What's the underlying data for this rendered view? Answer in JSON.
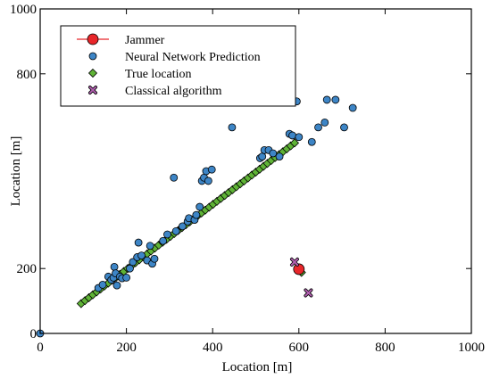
{
  "chart_data": {
    "type": "scatter",
    "title": "",
    "xlabel": "Location [m]",
    "ylabel": "Location [m]",
    "xlim": [
      0,
      1000
    ],
    "ylim": [
      0,
      1000
    ],
    "x_ticks": [
      0,
      200,
      400,
      600,
      800,
      1000
    ],
    "y_ticks": [
      0,
      200,
      800,
      1000
    ],
    "grid": false,
    "legend_placement": "top-left",
    "series": [
      {
        "name": "Jammer",
        "marker": "circle-line",
        "color": "#e8262a",
        "points": [
          [
            600,
            198
          ]
        ]
      },
      {
        "name": "Neural Network Prediction",
        "marker": "circle",
        "color": "#3d85c6",
        "points": [
          [
            0,
            0
          ],
          [
            135,
            140
          ],
          [
            145,
            150
          ],
          [
            158,
            175
          ],
          [
            165,
            165
          ],
          [
            170,
            172
          ],
          [
            172,
            205
          ],
          [
            175,
            185
          ],
          [
            178,
            148
          ],
          [
            185,
            175
          ],
          [
            190,
            170
          ],
          [
            200,
            172
          ],
          [
            208,
            200
          ],
          [
            215,
            220
          ],
          [
            225,
            235
          ],
          [
            228,
            280
          ],
          [
            235,
            240
          ],
          [
            248,
            225
          ],
          [
            255,
            270
          ],
          [
            260,
            215
          ],
          [
            265,
            230
          ],
          [
            285,
            285
          ],
          [
            295,
            305
          ],
          [
            310,
            480
          ],
          [
            315,
            315
          ],
          [
            330,
            330
          ],
          [
            342,
            345
          ],
          [
            345,
            355
          ],
          [
            358,
            350
          ],
          [
            362,
            365
          ],
          [
            370,
            390
          ],
          [
            375,
            470
          ],
          [
            380,
            480
          ],
          [
            385,
            500
          ],
          [
            390,
            470
          ],
          [
            398,
            505
          ],
          [
            445,
            635
          ],
          [
            510,
            540
          ],
          [
            515,
            545
          ],
          [
            520,
            565
          ],
          [
            530,
            565
          ],
          [
            540,
            555
          ],
          [
            555,
            545
          ],
          [
            578,
            615
          ],
          [
            585,
            610
          ],
          [
            595,
            715
          ],
          [
            600,
            605
          ],
          [
            630,
            590
          ],
          [
            645,
            635
          ],
          [
            660,
            650
          ],
          [
            665,
            720
          ],
          [
            685,
            720
          ],
          [
            705,
            635
          ],
          [
            725,
            695
          ]
        ]
      },
      {
        "name": "True location",
        "marker": "diamond",
        "color": "#5fb336",
        "points": [
          [
            95,
            92
          ],
          [
            104,
            101
          ],
          [
            113,
            110
          ],
          [
            122,
            119
          ],
          [
            131,
            128
          ],
          [
            140,
            137
          ],
          [
            149,
            146
          ],
          [
            158,
            155
          ],
          [
            167,
            164
          ],
          [
            176,
            173
          ],
          [
            185,
            182
          ],
          [
            194,
            191
          ],
          [
            203,
            200
          ],
          [
            212,
            209
          ],
          [
            221,
            218
          ],
          [
            230,
            227
          ],
          [
            239,
            236
          ],
          [
            248,
            245
          ],
          [
            257,
            254
          ],
          [
            266,
            263
          ],
          [
            275,
            272
          ],
          [
            284,
            281
          ],
          [
            293,
            290
          ],
          [
            302,
            299
          ],
          [
            311,
            308
          ],
          [
            320,
            317
          ],
          [
            329,
            326
          ],
          [
            338,
            335
          ],
          [
            347,
            344
          ],
          [
            356,
            353
          ],
          [
            365,
            362
          ],
          [
            374,
            371
          ],
          [
            383,
            380
          ],
          [
            392,
            389
          ],
          [
            401,
            398
          ],
          [
            410,
            407
          ],
          [
            419,
            416
          ],
          [
            428,
            425
          ],
          [
            437,
            434
          ],
          [
            446,
            443
          ],
          [
            455,
            452
          ],
          [
            464,
            461
          ],
          [
            473,
            470
          ],
          [
            482,
            479
          ],
          [
            491,
            488
          ],
          [
            500,
            497
          ],
          [
            509,
            506
          ],
          [
            518,
            515
          ],
          [
            527,
            524
          ],
          [
            536,
            533
          ],
          [
            545,
            542
          ],
          [
            554,
            551
          ],
          [
            563,
            560
          ],
          [
            572,
            569
          ],
          [
            581,
            578
          ],
          [
            590,
            587
          ],
          [
            606,
            188
          ]
        ]
      },
      {
        "name": "Classical algorithm",
        "marker": "x",
        "color": "#b15fb0",
        "points": [
          [
            590,
            220
          ],
          [
            622,
            125
          ]
        ]
      }
    ]
  }
}
